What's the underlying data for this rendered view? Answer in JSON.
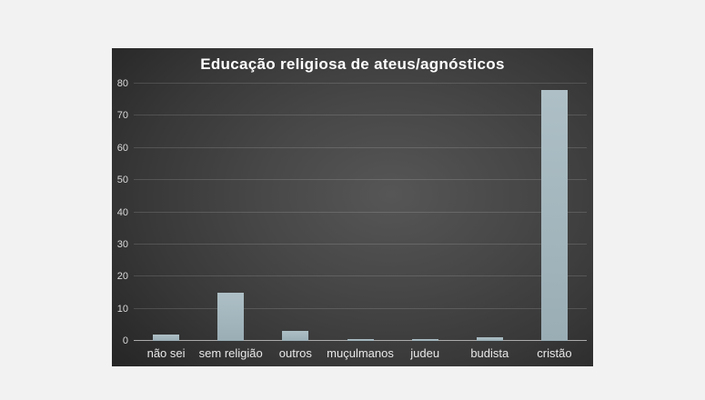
{
  "page": {
    "background_color": "#f2f2f2"
  },
  "chart_data": {
    "type": "bar",
    "title": "Educação religiosa de ateus/agnósticos",
    "categories": [
      "não sei",
      "sem religião",
      "outros",
      "muçulmanos",
      "judeu",
      "budista",
      "cristão"
    ],
    "values": [
      2,
      15,
      3,
      0.5,
      0.5,
      1,
      78
    ],
    "xlabel": "",
    "ylabel": "",
    "ylim": [
      0,
      80
    ],
    "yticks": [
      0,
      10,
      20,
      30,
      40,
      50,
      60,
      70,
      80
    ],
    "grid": true,
    "legend": false,
    "colors": {
      "bar": "#a2b5bc",
      "title": "#ffffff",
      "tick_labels": "#d9d9d9",
      "gridline": "rgba(255,255,255,0.14)",
      "axis_line": "#ababab",
      "panel_center": "#565656",
      "panel_edge": "#242424",
      "page_background": "#f2f2f2"
    }
  }
}
